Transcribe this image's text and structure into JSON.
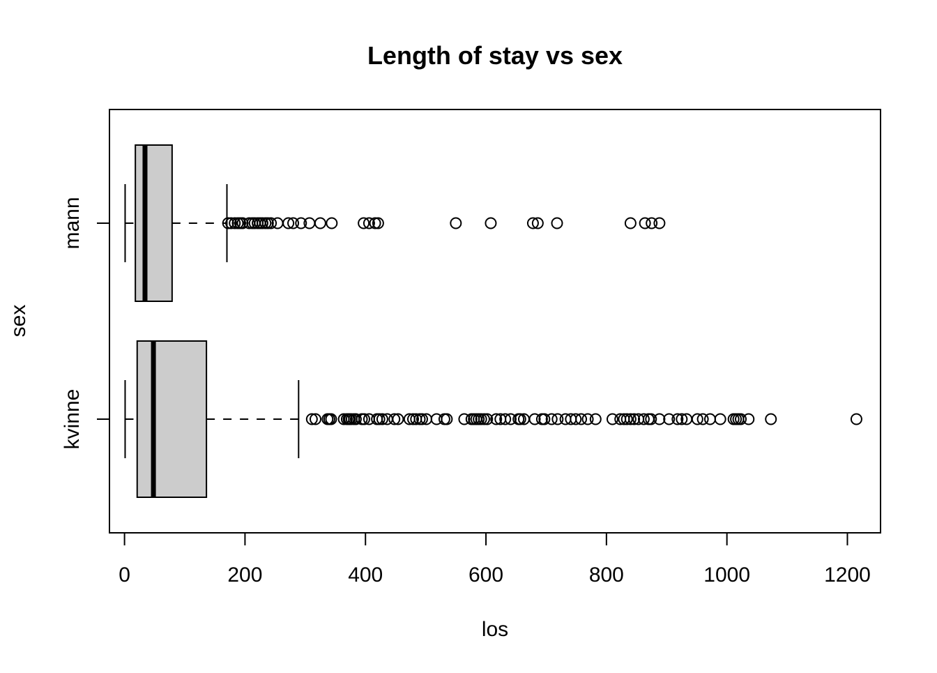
{
  "chart_data": {
    "type": "boxplot",
    "orientation": "horizontal",
    "title": "Length of stay vs sex",
    "xlabel": "los",
    "ylabel": "sex",
    "xlim": [
      -25,
      1255
    ],
    "x_ticks": [
      0,
      200,
      400,
      600,
      800,
      1000,
      1200
    ],
    "categories": [
      "kvinne",
      "mann"
    ],
    "boxes": [
      {
        "name": "kvinne",
        "whisker_low": 1,
        "q1": 21,
        "median": 48,
        "q3": 136,
        "whisker_high": 289,
        "outliers": [
          311,
          317,
          337,
          340,
          343,
          364,
          369,
          372,
          374,
          377,
          381,
          384,
          394,
          398,
          406,
          419,
          423,
          428,
          436,
          448,
          454,
          473,
          479,
          484,
          490,
          494,
          501,
          518,
          531,
          535,
          564,
          576,
          580,
          584,
          588,
          592,
          597,
          602,
          617,
          624,
          632,
          641,
          654,
          657,
          663,
          681,
          693,
          697,
          709,
          719,
          732,
          741,
          749,
          758,
          769,
          782,
          810,
          823,
          829,
          834,
          840,
          846,
          853,
          862,
          870,
          874,
          888,
          904,
          918,
          925,
          933,
          951,
          960,
          972,
          989,
          1011,
          1015,
          1019,
          1023,
          1036,
          1073,
          1215
        ]
      },
      {
        "name": "mann",
        "whisker_low": 1,
        "q1": 18,
        "median": 34,
        "q3": 79,
        "whisker_high": 170,
        "outliers": [
          172,
          177,
          183,
          188,
          192,
          196,
          207,
          212,
          216,
          221,
          225,
          229,
          234,
          238,
          243,
          254,
          272,
          280,
          293,
          307,
          325,
          344,
          397,
          406,
          416,
          421,
          550,
          608,
          678,
          686,
          718,
          840,
          864,
          875,
          888
        ]
      }
    ]
  }
}
